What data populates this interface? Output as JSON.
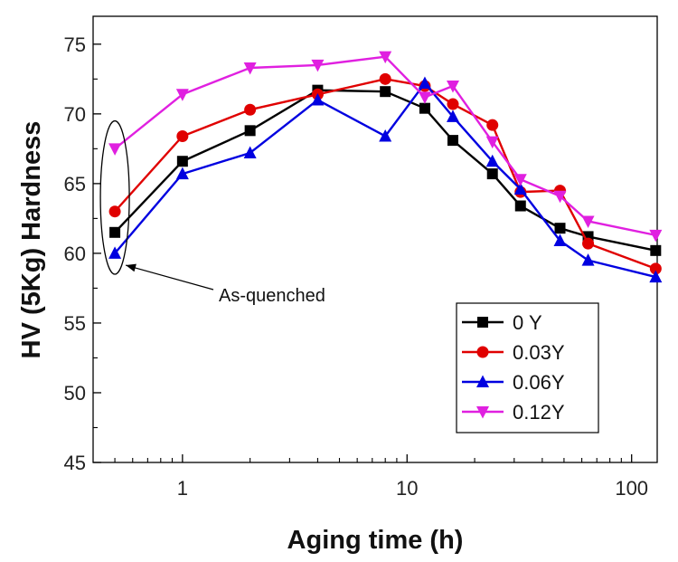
{
  "chart_data": {
    "type": "line",
    "title": "",
    "xlabel": "Aging time (h)",
    "ylabel": "HV (5Kg) Hardness",
    "xscale": "log",
    "xlim": [
      0.4,
      130
    ],
    "ylim": [
      45,
      77
    ],
    "xticks": [
      1,
      10,
      100
    ],
    "xtick_labels": [
      "1",
      "10",
      "100"
    ],
    "yticks": [
      45,
      50,
      55,
      60,
      65,
      70,
      75
    ],
    "ytick_labels": [
      "45",
      "50",
      "55",
      "60",
      "65",
      "70",
      "75"
    ],
    "grid": false,
    "legend": "lower-right",
    "x": [
      0.5,
      1,
      2,
      4,
      8,
      12,
      16,
      24,
      32,
      48,
      64,
      128
    ],
    "series": [
      {
        "name": "0 Y",
        "marker": "square",
        "color": "#000000",
        "values": [
          61.5,
          66.6,
          68.8,
          71.7,
          71.6,
          70.4,
          68.1,
          65.7,
          63.4,
          61.8,
          61.2,
          60.2
        ]
      },
      {
        "name": "0.03Y",
        "marker": "circle",
        "color": "#e00000",
        "values": [
          63.0,
          68.4,
          70.3,
          71.4,
          72.5,
          72.0,
          70.7,
          69.2,
          64.4,
          64.5,
          60.7,
          58.9
        ]
      },
      {
        "name": "0.06Y",
        "marker": "triangle-up",
        "color": "#0000e0",
        "values": [
          60.0,
          65.7,
          67.2,
          71.0,
          68.4,
          72.2,
          69.8,
          66.6,
          64.6,
          60.9,
          59.5,
          58.3
        ]
      },
      {
        "name": "0.12Y",
        "marker": "triangle-down",
        "color": "#e020e0",
        "values": [
          67.5,
          71.4,
          73.3,
          73.5,
          74.1,
          71.2,
          72.0,
          68.0,
          65.3,
          64.1,
          62.3,
          61.3
        ]
      }
    ],
    "annotations": [
      {
        "text": "As-quenched",
        "x": 0.5,
        "y_range": [
          58.5,
          69.5
        ]
      }
    ]
  }
}
